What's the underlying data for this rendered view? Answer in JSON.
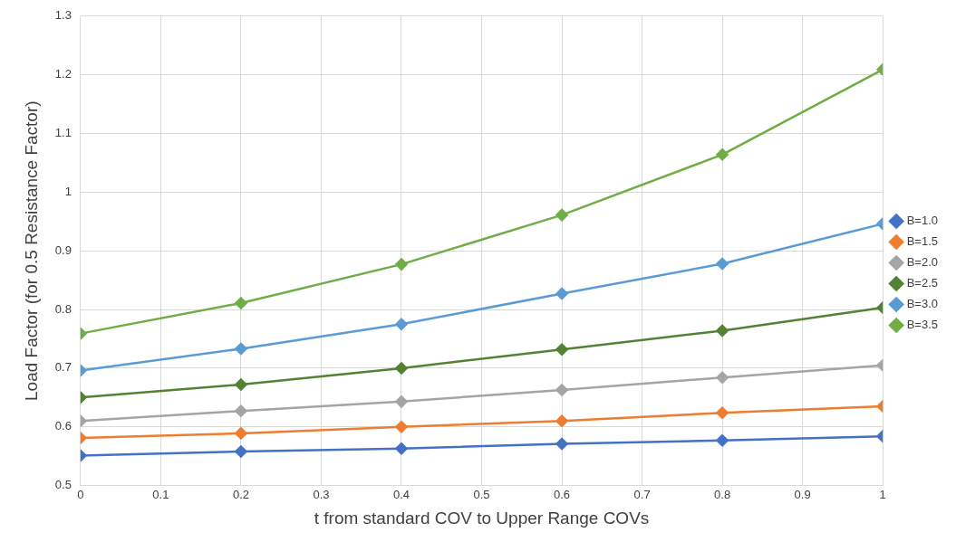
{
  "chart_data": {
    "type": "line",
    "xlabel": "t from standard COV to Upper Range COVs",
    "ylabel": "Load Factor (for 0.5 Resistance Factor)",
    "x": [
      0,
      0.2,
      0.4,
      0.6,
      0.8,
      1
    ],
    "series": [
      {
        "name": "B=1.0",
        "color": "#4472c4",
        "values": [
          0.551,
          0.558,
          0.563,
          0.571,
          0.577,
          0.584
        ]
      },
      {
        "name": "B=1.5",
        "color": "#ed7d31",
        "values": [
          0.581,
          0.589,
          0.6,
          0.61,
          0.624,
          0.635
        ]
      },
      {
        "name": "B=2.0",
        "color": "#a5a5a5",
        "values": [
          0.61,
          0.627,
          0.643,
          0.663,
          0.684,
          0.705
        ]
      },
      {
        "name": "B=2.5",
        "color": "#548235",
        "values": [
          0.65,
          0.672,
          0.7,
          0.732,
          0.764,
          0.803
        ]
      },
      {
        "name": "B=3.0",
        "color": "#5b9bd5",
        "values": [
          0.696,
          0.733,
          0.775,
          0.827,
          0.878,
          0.946
        ]
      },
      {
        "name": "B=3.5",
        "color": "#70ad47",
        "values": [
          0.759,
          0.811,
          0.877,
          0.961,
          1.064,
          1.209
        ]
      }
    ],
    "xlim": [
      0,
      1
    ],
    "xticks": [
      0,
      0.1,
      0.2,
      0.3,
      0.4,
      0.5,
      0.6,
      0.7,
      0.8,
      0.9,
      1
    ],
    "ylim": [
      0.5,
      1.3
    ],
    "yticks": [
      0.5,
      0.6,
      0.7,
      0.8,
      0.9,
      1,
      1.1,
      1.2,
      1.3
    ],
    "grid": true,
    "legend": "right",
    "marker": "diamond",
    "line_style": "solid"
  }
}
